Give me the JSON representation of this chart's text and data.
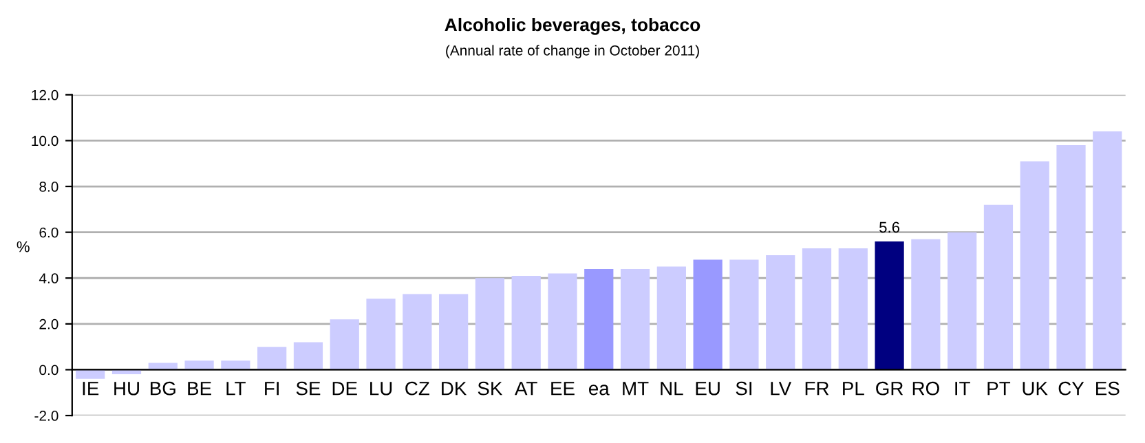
{
  "chart_data": {
    "type": "bar",
    "title": "Alcoholic beverages, tobacco",
    "subtitle": "(Annual rate of change in October 2011)",
    "ylabel": "%",
    "categories": [
      "IE",
      "HU",
      "BG",
      "BE",
      "LT",
      "FI",
      "SE",
      "DE",
      "LU",
      "CZ",
      "DK",
      "SK",
      "AT",
      "EE",
      "ea",
      "MT",
      "NL",
      "EU",
      "SI",
      "LV",
      "FR",
      "PL",
      "GR",
      "RO",
      "IT",
      "PT",
      "UK",
      "CY",
      "ES"
    ],
    "values": [
      -0.4,
      -0.2,
      0.3,
      0.4,
      0.4,
      1.0,
      1.2,
      2.2,
      3.1,
      3.3,
      3.3,
      4.0,
      4.1,
      4.2,
      4.4,
      4.4,
      4.5,
      4.8,
      4.8,
      5.0,
      5.3,
      5.3,
      5.6,
      5.7,
      6.0,
      7.2,
      9.1,
      9.8,
      10.4
    ],
    "colors": [
      "#ccccff",
      "#ccccff",
      "#ccccff",
      "#ccccff",
      "#ccccff",
      "#ccccff",
      "#ccccff",
      "#ccccff",
      "#ccccff",
      "#ccccff",
      "#ccccff",
      "#ccccff",
      "#ccccff",
      "#ccccff",
      "#9999ff",
      "#ccccff",
      "#ccccff",
      "#9999ff",
      "#ccccff",
      "#ccccff",
      "#ccccff",
      "#ccccff",
      "#000080",
      "#ccccff",
      "#ccccff",
      "#ccccff",
      "#ccccff",
      "#ccccff",
      "#ccccff"
    ],
    "value_labels": [
      null,
      null,
      null,
      null,
      null,
      null,
      null,
      null,
      null,
      null,
      null,
      null,
      null,
      null,
      null,
      null,
      null,
      null,
      null,
      null,
      null,
      null,
      "5.6",
      null,
      null,
      null,
      null,
      null,
      null
    ],
    "ylim": [
      -2.0,
      12.0
    ],
    "yticks": [
      {
        "value": -2,
        "label": "-2.0"
      },
      {
        "value": 0,
        "label": "0.0"
      },
      {
        "value": 2,
        "label": "2.0"
      },
      {
        "value": 4,
        "label": "4.0"
      },
      {
        "value": 6,
        "label": "6.0"
      },
      {
        "value": 8,
        "label": "8.0"
      },
      {
        "value": 10,
        "label": "10.0"
      },
      {
        "value": 12,
        "label": "12.0"
      }
    ],
    "grid": "y"
  }
}
